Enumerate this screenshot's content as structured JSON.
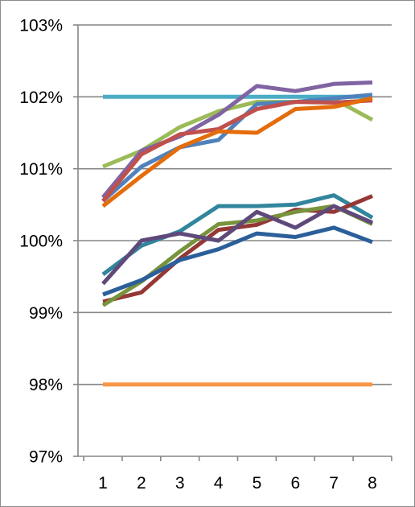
{
  "chart_data": {
    "type": "line",
    "title": "",
    "xlabel": "",
    "ylabel": "",
    "x": [
      1,
      2,
      3,
      4,
      5,
      6,
      7,
      8
    ],
    "x_tick_labels": [
      "1",
      "2",
      "3",
      "4",
      "5",
      "6",
      "7",
      "8"
    ],
    "ylim": [
      97,
      103
    ],
    "y_ticks": [
      97,
      98,
      99,
      100,
      101,
      102,
      103
    ],
    "y_tick_labels": [
      "97%",
      "98%",
      "99%",
      "100%",
      "101%",
      "102%",
      "103%"
    ],
    "grid": "horizontal",
    "legend": "none",
    "series": [
      {
        "color": "#4bacc6",
        "values": [
          102.0,
          102.0,
          102.0,
          102.0,
          102.0,
          102.0,
          102.0,
          102.0
        ]
      },
      {
        "color": "#f79646",
        "values": [
          98.0,
          98.0,
          98.0,
          98.0,
          98.0,
          98.0,
          98.0,
          98.0
        ]
      },
      {
        "color": "#9bbb59",
        "values": [
          101.03,
          101.25,
          101.58,
          101.8,
          101.93,
          101.93,
          101.97,
          101.68
        ]
      },
      {
        "color": "#8064a2",
        "values": [
          100.6,
          101.25,
          101.45,
          101.75,
          102.15,
          102.08,
          102.18,
          102.2
        ]
      },
      {
        "color": "#4f81bd",
        "values": [
          100.55,
          101.03,
          101.3,
          101.4,
          101.9,
          101.93,
          101.98,
          102.03
        ]
      },
      {
        "color": "#c0504d",
        "values": [
          100.55,
          101.2,
          101.48,
          101.55,
          101.83,
          101.93,
          101.92,
          101.95
        ]
      },
      {
        "color": "#e46c0a",
        "values": [
          100.48,
          100.9,
          101.3,
          101.52,
          101.5,
          101.83,
          101.86,
          101.98
        ]
      },
      {
        "color": "#31859c",
        "values": [
          99.53,
          99.93,
          100.13,
          100.48,
          100.48,
          100.5,
          100.63,
          100.32
        ]
      },
      {
        "color": "#953735",
        "values": [
          99.15,
          99.28,
          99.75,
          100.15,
          100.22,
          100.43,
          100.4,
          100.62
        ]
      },
      {
        "color": "#77933c",
        "values": [
          99.1,
          99.43,
          99.85,
          100.23,
          100.28,
          100.4,
          100.48,
          100.23
        ]
      },
      {
        "color": "#5f497a",
        "values": [
          99.4,
          100.0,
          100.1,
          100.0,
          100.4,
          100.18,
          100.48,
          100.25
        ]
      },
      {
        "color": "#2c5f9a",
        "values": [
          99.25,
          99.45,
          99.73,
          99.88,
          100.1,
          100.05,
          100.18,
          99.98
        ]
      }
    ]
  }
}
